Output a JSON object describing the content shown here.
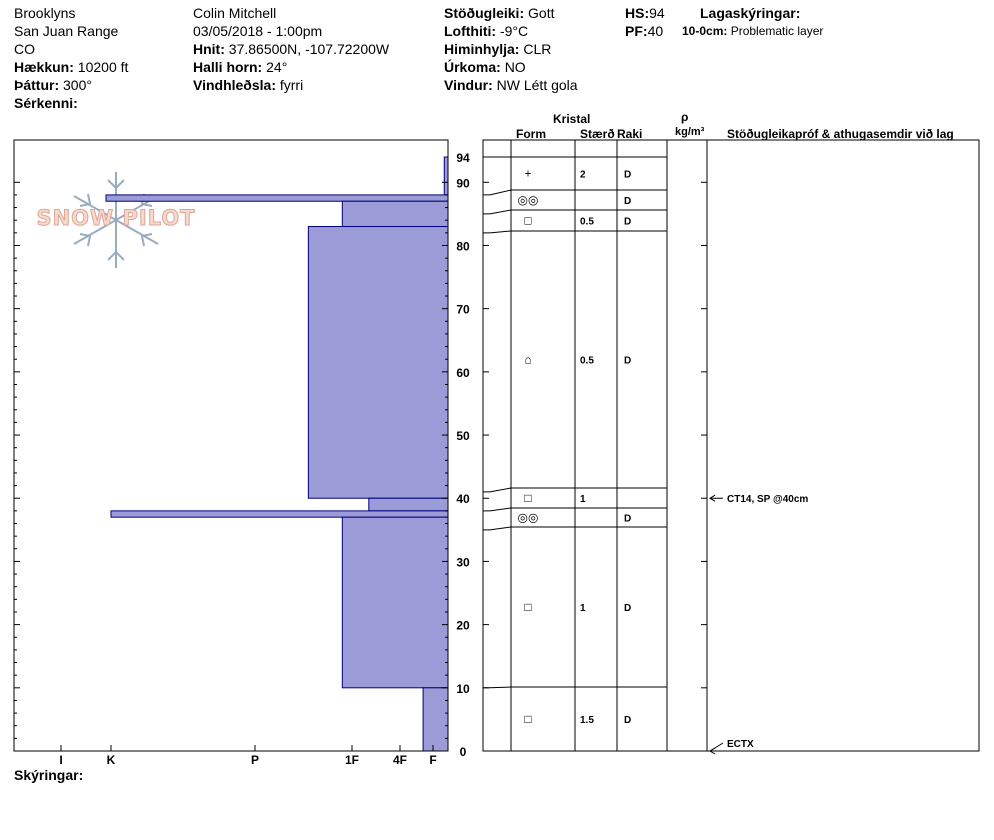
{
  "header": {
    "location": "Brooklyns",
    "range": "San Juan Range",
    "state": "CO",
    "elevation_label": "Hækkun:",
    "elevation_value": "10200 ft",
    "aspect_label": "Þáttur:",
    "aspect_value": "300°",
    "features_label": "Sérkenni:",
    "observer": "Colin Mitchell",
    "datetime": "03/05/2018 - 1:00pm",
    "coords_label": "Hnit:",
    "coords_value": "37.86500N, -107.72200W",
    "slope_label": "Halli horn:",
    "slope_value": "24°",
    "wind_loading_label": "Vindhleðsla:",
    "wind_loading_value": "fyrri",
    "stability_label": "Stöðugleiki:",
    "stability_value": "Gott",
    "air_temp_label": "Lofthiti:",
    "air_temp_value": "-9°C",
    "sky_label": "Himinhylja:",
    "sky_value": "CLR",
    "precip_label": "Úrkoma:",
    "precip_value": "NO",
    "wind_label": "Vindur:",
    "wind_value": "NW Létt gola",
    "hs_label": "HS:",
    "hs_value": "94",
    "pf_label": "PF:",
    "pf_value": "40",
    "layer_notes_label": "Lagaskýringar:",
    "layer_note_range": "10-0cm:",
    "layer_note_text": "Problematic layer"
  },
  "logo_text": "SNOW PILOT",
  "columns": {
    "crystal": "Kristal",
    "form": "Form",
    "size": "Stærð",
    "moisture": "Raki",
    "rho": "ρ",
    "density_unit": "kg/m³",
    "tests": "Stöðugleikapróf & athugasemdir við lag"
  },
  "footer": {
    "comments_label": "Skýringar:"
  },
  "colors": {
    "bar_fill": "#9b9bd8",
    "bar_stroke": "#00007a",
    "line": "#000000"
  },
  "chart_data": {
    "type": "bar",
    "orientation": "horizontal",
    "title": "",
    "xlabel": "",
    "ylabel": "",
    "ylim": [
      0,
      94
    ],
    "yticks": [
      0,
      10,
      20,
      30,
      40,
      50,
      60,
      70,
      80,
      90,
      94
    ],
    "xticks": [
      "I",
      "K",
      "P",
      "1F",
      "4F",
      "F"
    ],
    "hardness_scale": {
      "F": 1,
      "4F": 2,
      "1F": 3,
      "P": 4,
      "K": 5,
      "I": 6
    },
    "hardness_layers": [
      {
        "top": 94,
        "bottom": 88,
        "hardness": 0.25
      },
      {
        "top": 88,
        "bottom": 87,
        "hardness": 5.1
      },
      {
        "top": 87,
        "bottom": 83,
        "hardness": 3.1
      },
      {
        "top": 83,
        "bottom": 40,
        "hardness": 3.45
      },
      {
        "top": 40,
        "bottom": 38,
        "hardness": 2.65
      },
      {
        "top": 38,
        "bottom": 37,
        "hardness": 5.0
      },
      {
        "top": 37,
        "bottom": 10,
        "hardness": 3.1
      },
      {
        "top": 10,
        "bottom": 0,
        "hardness": 1.3
      }
    ],
    "layers": [
      {
        "top": 94,
        "bottom": 88,
        "form": "+",
        "size": "2",
        "moisture": "D"
      },
      {
        "top": 88,
        "bottom": 85,
        "form": "◎◎",
        "size": "",
        "moisture": "D"
      },
      {
        "top": 85,
        "bottom": 82,
        "form": "□",
        "size": "0.5",
        "moisture": "D"
      },
      {
        "top": 82,
        "bottom": 41,
        "form": "⌂",
        "size": "0.5",
        "moisture": "D"
      },
      {
        "top": 41,
        "bottom": 38,
        "form": "□",
        "size": "1",
        "moisture": ""
      },
      {
        "top": 38,
        "bottom": 35,
        "form": "◎◎",
        "size": "",
        "moisture": "D"
      },
      {
        "top": 35,
        "bottom": 10,
        "form": "□",
        "size": "1",
        "moisture": "D"
      },
      {
        "top": 10,
        "bottom": 0,
        "form": "□",
        "size": "1.5",
        "moisture": "D"
      }
    ],
    "tests": [
      {
        "depth": 40,
        "text": "CT14, SP @40cm"
      },
      {
        "depth": 0,
        "text": "ECTX"
      }
    ]
  }
}
